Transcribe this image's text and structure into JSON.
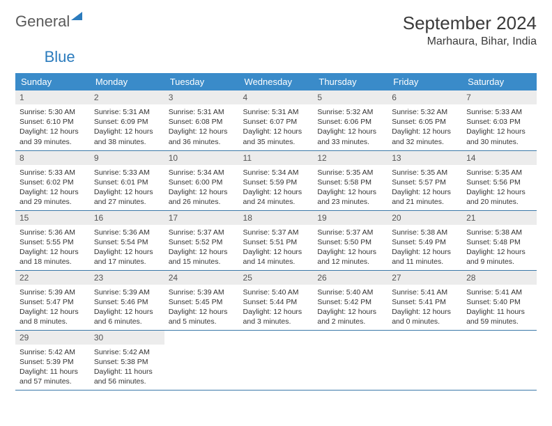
{
  "logo": {
    "word1": "General",
    "word2": "Blue"
  },
  "title": "September 2024",
  "location": "Marhaura, Bihar, India",
  "colors": {
    "header_bg": "#3a8bc9",
    "header_text": "#ffffff",
    "row_border": "#3a78a8",
    "daynum_bg": "#ececec",
    "logo_gray": "#5a5a5a",
    "logo_blue": "#2b7bbd"
  },
  "weekdays": [
    "Sunday",
    "Monday",
    "Tuesday",
    "Wednesday",
    "Thursday",
    "Friday",
    "Saturday"
  ],
  "weeks": [
    [
      {
        "n": "1",
        "sr": "5:30 AM",
        "ss": "6:10 PM",
        "dl": "12 hours and 39 minutes."
      },
      {
        "n": "2",
        "sr": "5:31 AM",
        "ss": "6:09 PM",
        "dl": "12 hours and 38 minutes."
      },
      {
        "n": "3",
        "sr": "5:31 AM",
        "ss": "6:08 PM",
        "dl": "12 hours and 36 minutes."
      },
      {
        "n": "4",
        "sr": "5:31 AM",
        "ss": "6:07 PM",
        "dl": "12 hours and 35 minutes."
      },
      {
        "n": "5",
        "sr": "5:32 AM",
        "ss": "6:06 PM",
        "dl": "12 hours and 33 minutes."
      },
      {
        "n": "6",
        "sr": "5:32 AM",
        "ss": "6:05 PM",
        "dl": "12 hours and 32 minutes."
      },
      {
        "n": "7",
        "sr": "5:33 AM",
        "ss": "6:03 PM",
        "dl": "12 hours and 30 minutes."
      }
    ],
    [
      {
        "n": "8",
        "sr": "5:33 AM",
        "ss": "6:02 PM",
        "dl": "12 hours and 29 minutes."
      },
      {
        "n": "9",
        "sr": "5:33 AM",
        "ss": "6:01 PM",
        "dl": "12 hours and 27 minutes."
      },
      {
        "n": "10",
        "sr": "5:34 AM",
        "ss": "6:00 PM",
        "dl": "12 hours and 26 minutes."
      },
      {
        "n": "11",
        "sr": "5:34 AM",
        "ss": "5:59 PM",
        "dl": "12 hours and 24 minutes."
      },
      {
        "n": "12",
        "sr": "5:35 AM",
        "ss": "5:58 PM",
        "dl": "12 hours and 23 minutes."
      },
      {
        "n": "13",
        "sr": "5:35 AM",
        "ss": "5:57 PM",
        "dl": "12 hours and 21 minutes."
      },
      {
        "n": "14",
        "sr": "5:35 AM",
        "ss": "5:56 PM",
        "dl": "12 hours and 20 minutes."
      }
    ],
    [
      {
        "n": "15",
        "sr": "5:36 AM",
        "ss": "5:55 PM",
        "dl": "12 hours and 18 minutes."
      },
      {
        "n": "16",
        "sr": "5:36 AM",
        "ss": "5:54 PM",
        "dl": "12 hours and 17 minutes."
      },
      {
        "n": "17",
        "sr": "5:37 AM",
        "ss": "5:52 PM",
        "dl": "12 hours and 15 minutes."
      },
      {
        "n": "18",
        "sr": "5:37 AM",
        "ss": "5:51 PM",
        "dl": "12 hours and 14 minutes."
      },
      {
        "n": "19",
        "sr": "5:37 AM",
        "ss": "5:50 PM",
        "dl": "12 hours and 12 minutes."
      },
      {
        "n": "20",
        "sr": "5:38 AM",
        "ss": "5:49 PM",
        "dl": "12 hours and 11 minutes."
      },
      {
        "n": "21",
        "sr": "5:38 AM",
        "ss": "5:48 PM",
        "dl": "12 hours and 9 minutes."
      }
    ],
    [
      {
        "n": "22",
        "sr": "5:39 AM",
        "ss": "5:47 PM",
        "dl": "12 hours and 8 minutes."
      },
      {
        "n": "23",
        "sr": "5:39 AM",
        "ss": "5:46 PM",
        "dl": "12 hours and 6 minutes."
      },
      {
        "n": "24",
        "sr": "5:39 AM",
        "ss": "5:45 PM",
        "dl": "12 hours and 5 minutes."
      },
      {
        "n": "25",
        "sr": "5:40 AM",
        "ss": "5:44 PM",
        "dl": "12 hours and 3 minutes."
      },
      {
        "n": "26",
        "sr": "5:40 AM",
        "ss": "5:42 PM",
        "dl": "12 hours and 2 minutes."
      },
      {
        "n": "27",
        "sr": "5:41 AM",
        "ss": "5:41 PM",
        "dl": "12 hours and 0 minutes."
      },
      {
        "n": "28",
        "sr": "5:41 AM",
        "ss": "5:40 PM",
        "dl": "11 hours and 59 minutes."
      }
    ],
    [
      {
        "n": "29",
        "sr": "5:42 AM",
        "ss": "5:39 PM",
        "dl": "11 hours and 57 minutes."
      },
      {
        "n": "30",
        "sr": "5:42 AM",
        "ss": "5:38 PM",
        "dl": "11 hours and 56 minutes."
      },
      null,
      null,
      null,
      null,
      null
    ]
  ],
  "labels": {
    "sunrise": "Sunrise: ",
    "sunset": "Sunset: ",
    "daylight": "Daylight: "
  }
}
